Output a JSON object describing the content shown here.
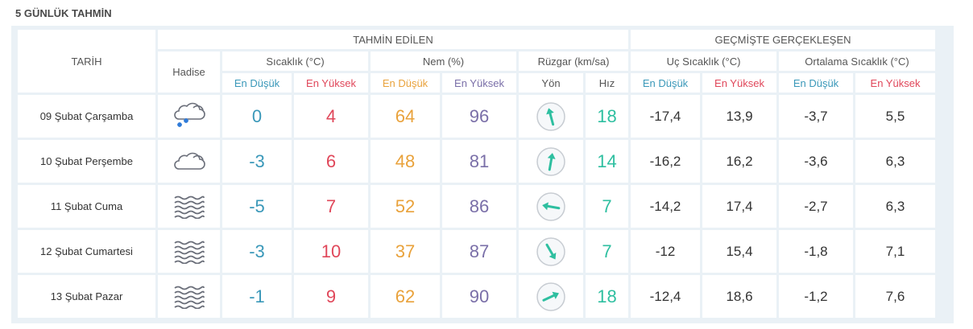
{
  "section_title": "5 GÜNLÜK TAHMİN",
  "headers": {
    "date": "TARİH",
    "forecast_group": "TAHMİN EDİLEN",
    "past_group": "GEÇMİŞTE GERÇEKLEŞEN",
    "event": "Hadise",
    "temperature": "Sıcaklık (°C)",
    "humidity": "Nem (%)",
    "wind": "Rüzgar (km/sa)",
    "extreme_temp": "Uç Sıcaklık (°C)",
    "avg_temp": "Ortalama Sıcaklık (°C)",
    "low": "En Düşük",
    "high": "En Yüksek",
    "direction": "Yön",
    "speed": "Hız"
  },
  "rows": [
    {
      "date": "09 Şubat Çarşamba",
      "event_icon": "snow-cloud-icon",
      "temp_low": "0",
      "temp_high": "4",
      "hum_low": "64",
      "hum_high": "96",
      "wind_angle": 165,
      "wind_speed": "18",
      "ext_low": "-17,4",
      "ext_high": "13,9",
      "avg_low": "-3,7",
      "avg_high": "5,5"
    },
    {
      "date": "10 Şubat Perşembe",
      "event_icon": "cloud-icon",
      "temp_low": "-3",
      "temp_high": "6",
      "hum_low": "48",
      "hum_high": "81",
      "wind_angle": 190,
      "wind_speed": "14",
      "ext_low": "-16,2",
      "ext_high": "16,2",
      "avg_low": "-3,6",
      "avg_high": "6,3"
    },
    {
      "date": "11 Şubat Cuma",
      "event_icon": "wave-icon",
      "temp_low": "-5",
      "temp_high": "7",
      "hum_low": "52",
      "hum_high": "86",
      "wind_angle": 100,
      "wind_speed": "7",
      "ext_low": "-14,2",
      "ext_high": "17,4",
      "avg_low": "-2,7",
      "avg_high": "6,3"
    },
    {
      "date": "12 Şubat Cumartesi",
      "event_icon": "wave-icon",
      "temp_low": "-3",
      "temp_high": "10",
      "hum_low": "37",
      "hum_high": "87",
      "wind_angle": 330,
      "wind_speed": "7",
      "ext_low": "-12",
      "ext_high": "15,4",
      "avg_low": "-1,8",
      "avg_high": "7,1"
    },
    {
      "date": "13 Şubat Pazar",
      "event_icon": "wave-icon",
      "temp_low": "-1",
      "temp_high": "9",
      "hum_low": "62",
      "hum_high": "90",
      "wind_angle": 245,
      "wind_speed": "18",
      "ext_low": "-12,4",
      "ext_high": "18,6",
      "avg_low": "-1,2",
      "avg_high": "7,6"
    }
  ],
  "colors": {
    "low": "#3a98b9",
    "high": "#e0475a",
    "hum_low": "#e9a23b",
    "hum_high": "#7a6fa8",
    "wind": "#2ebfa0",
    "panel_bg": "#eaf1f6"
  }
}
